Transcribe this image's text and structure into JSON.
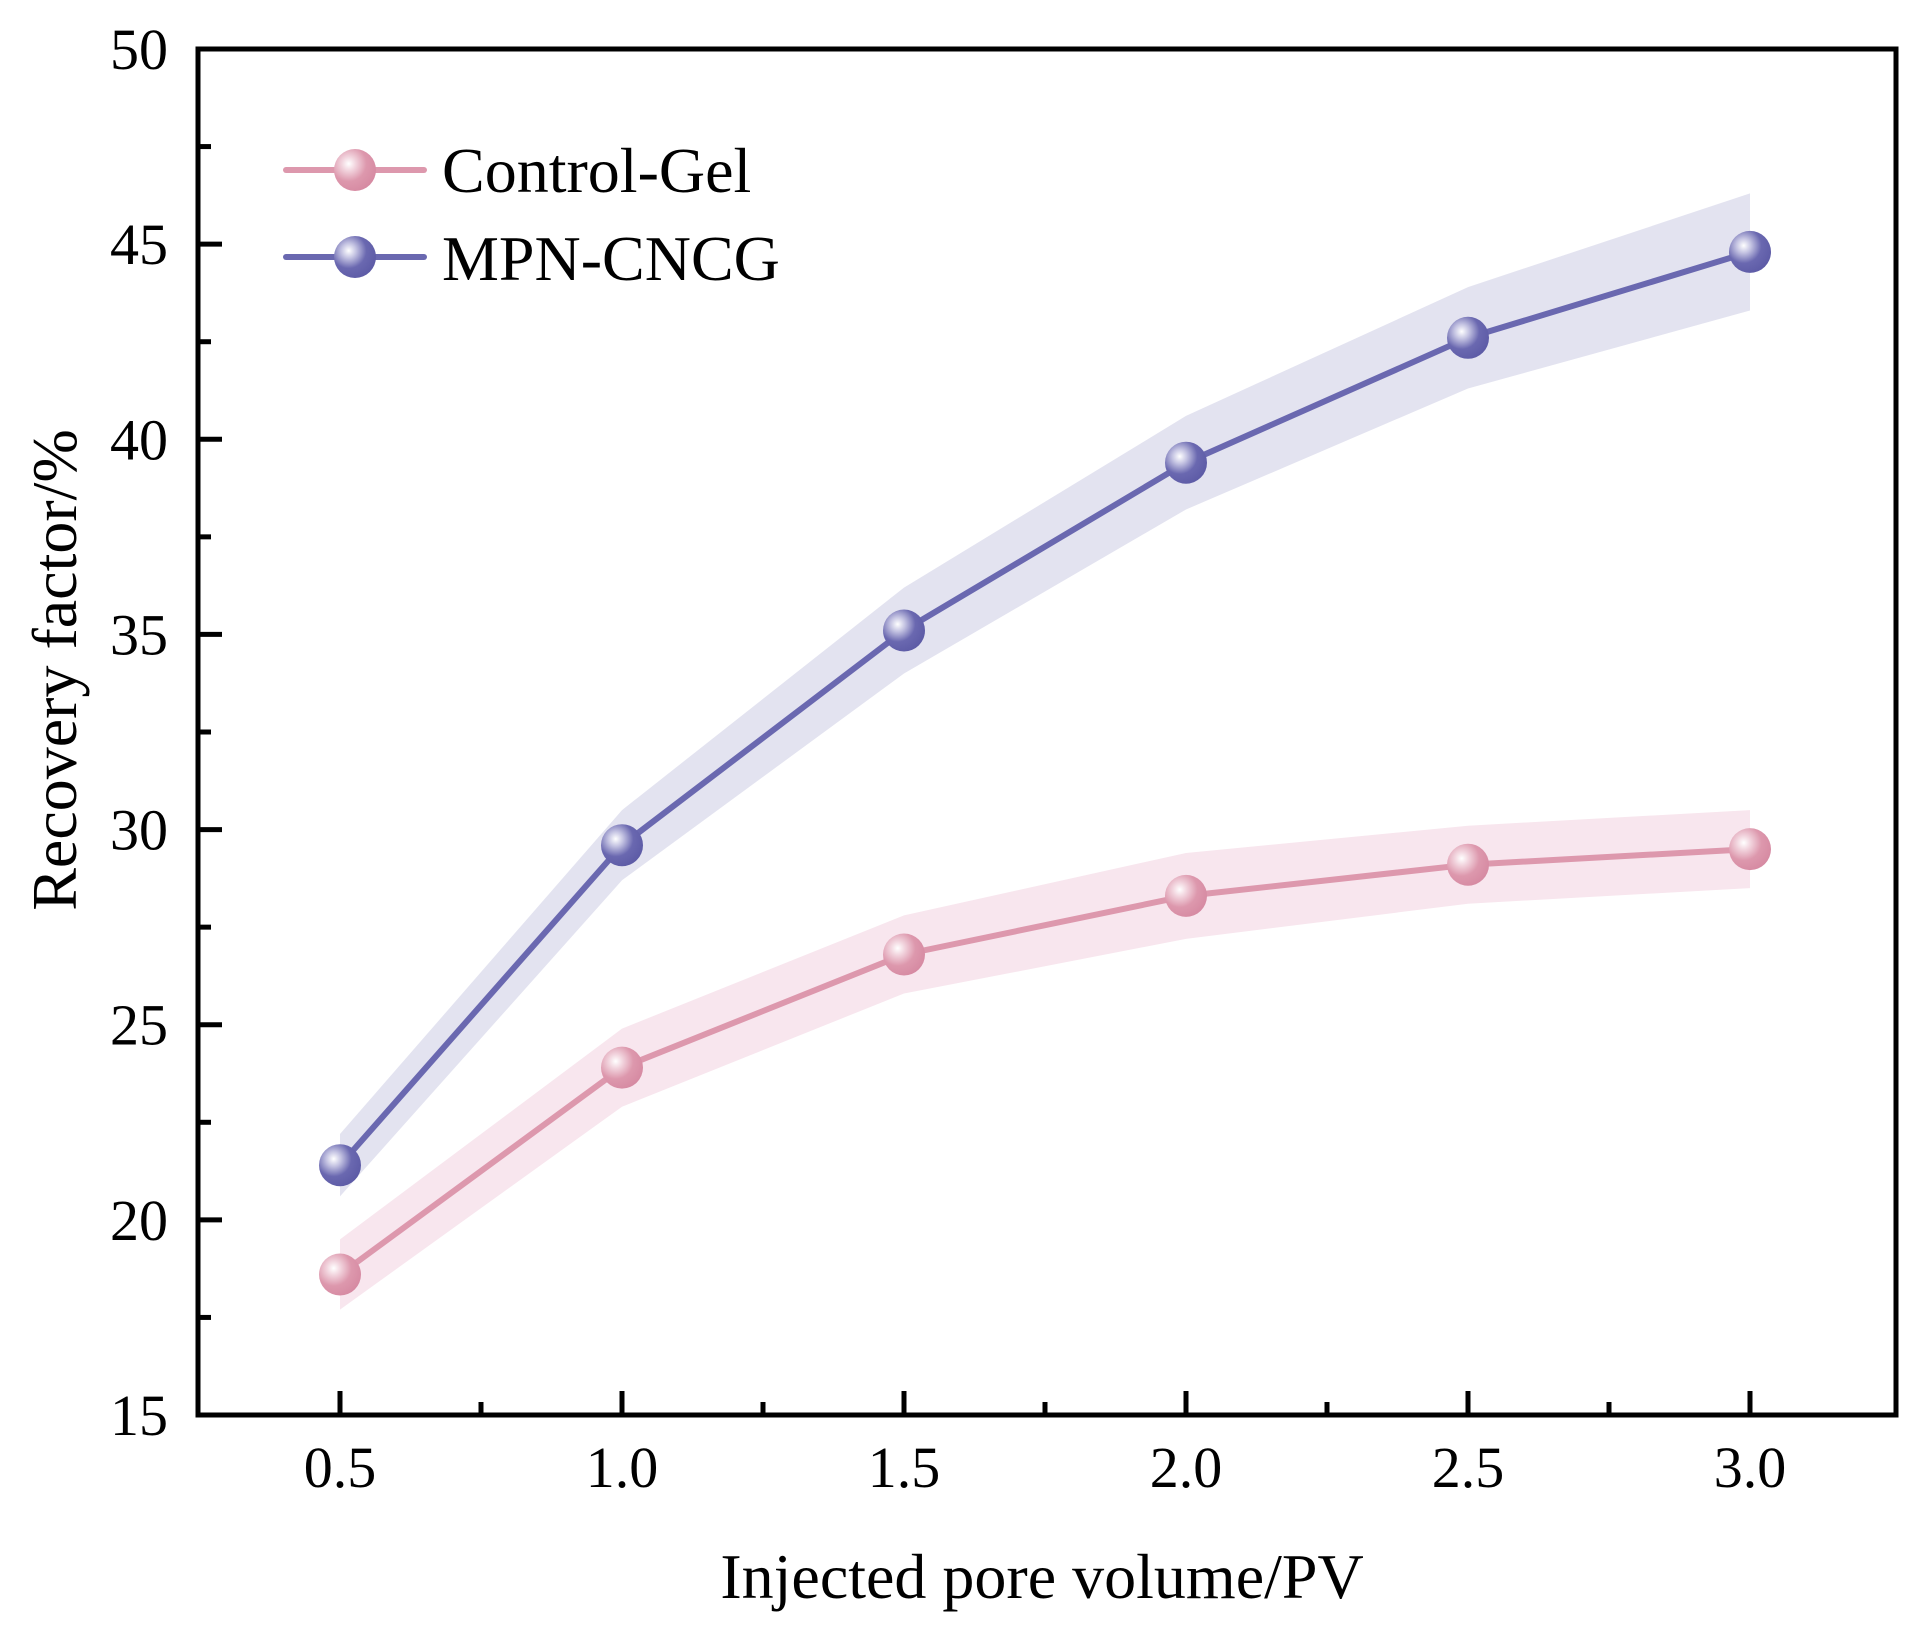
{
  "chart_data": {
    "type": "line",
    "title": "",
    "xlabel": "Injected pore volume/PV",
    "ylabel": "Recovery factor/%",
    "x": [
      0.5,
      1.0,
      1.5,
      2.0,
      2.5,
      3.0
    ],
    "xlim": [
      0.25,
      3.25
    ],
    "ylim": [
      15,
      50
    ],
    "xticks": [
      0.5,
      1.0,
      1.5,
      2.0,
      2.5,
      3.0
    ],
    "xtick_labels": [
      "0.5",
      "1.0",
      "1.5",
      "2.0",
      "2.5",
      "3.0"
    ],
    "xminor_ticks": [
      0.75,
      1.25,
      1.75,
      2.25,
      2.75
    ],
    "yticks": [
      15,
      20,
      25,
      30,
      35,
      40,
      45,
      50
    ],
    "ytick_labels": [
      "15",
      "20",
      "25",
      "30",
      "35",
      "40",
      "45",
      "50"
    ],
    "yminor_ticks": [
      17.5,
      22.5,
      27.5,
      32.5,
      37.5,
      42.5,
      47.5
    ],
    "grid": false,
    "legend_position": "top-left",
    "series": [
      {
        "name": "Control-Gel",
        "color": "#dd98ad",
        "band_color": "#f8e6ee",
        "values": [
          18.6,
          23.9,
          26.8,
          28.3,
          29.1,
          29.5
        ],
        "error": [
          0.9,
          1.0,
          1.0,
          1.1,
          1.0,
          1.0
        ]
      },
      {
        "name": "MPN-CNCG",
        "color": "#6a68b0",
        "band_color": "#e3e3f0",
        "values": [
          21.4,
          29.6,
          35.1,
          39.4,
          42.6,
          44.8
        ],
        "error": [
          0.8,
          0.9,
          1.1,
          1.2,
          1.3,
          1.5
        ]
      }
    ]
  }
}
